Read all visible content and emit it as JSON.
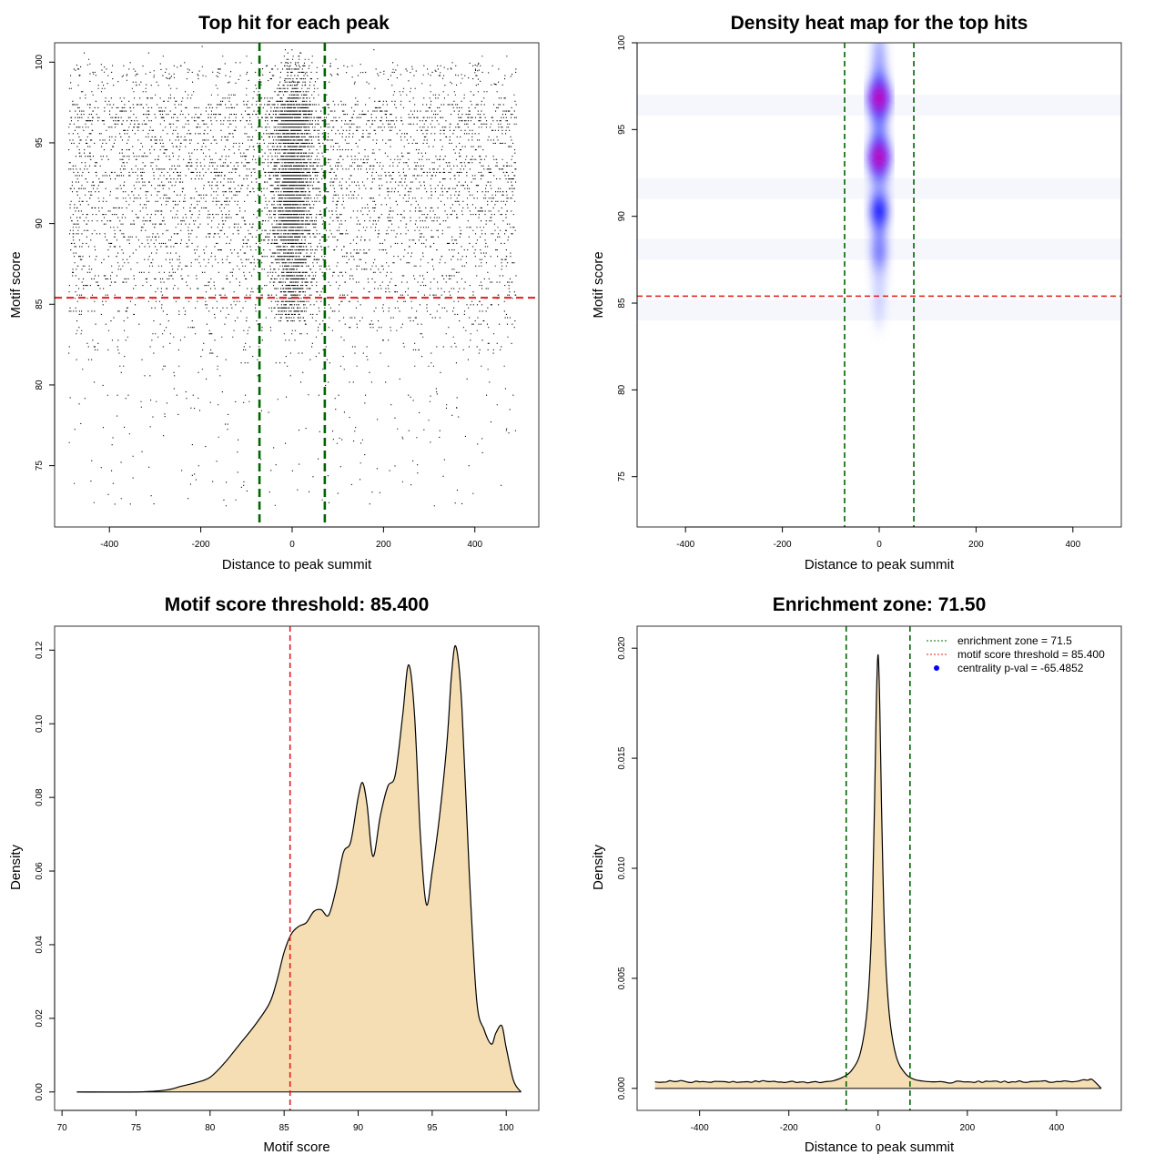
{
  "chart_data": [
    {
      "type": "scatter",
      "title": "Top hit for each peak",
      "xlabel": "Distance to peak summit",
      "ylabel": "Motif score",
      "xlim": [
        -500,
        500
      ],
      "ylim": [
        72,
        100
      ],
      "xticks": [
        -400,
        -200,
        0,
        200,
        400
      ],
      "yticks": [
        75,
        80,
        85,
        90,
        95,
        100
      ],
      "threshold_y": 85.4,
      "enrichment_zone": [
        -71.5,
        71.5
      ],
      "colors": {
        "points": "#000000",
        "threshold": "#e31a1c",
        "zone": "#006400"
      },
      "description": "Dense scatter of motif hits; hits concentrate near the summit (|x| < 70) and above the threshold; broad background across x at scores 80-97"
    },
    {
      "type": "heatmap",
      "title": "Density heat map for the top hits",
      "xlabel": "Distance to peak summit",
      "ylabel": "Motif score",
      "xlim": [
        -500,
        500
      ],
      "ylim": [
        72,
        100
      ],
      "xticks": [
        -400,
        -200,
        0,
        200,
        400
      ],
      "yticks": [
        75,
        80,
        85,
        90,
        95,
        100
      ],
      "threshold_y": 85.4,
      "enrichment_zone": [
        -71.5,
        71.5
      ],
      "hotspots": [
        {
          "x": 0,
          "y": 96.8,
          "level": "high"
        },
        {
          "x": 0,
          "y": 93.4,
          "level": "high"
        },
        {
          "x": 0,
          "y": 90.3,
          "level": "medium"
        },
        {
          "x": 0,
          "y": 88.0,
          "level": "low"
        }
      ],
      "colors": {
        "low": "#ffffff",
        "mid": "#0000ff",
        "high": "#ff0000",
        "threshold": "#e31a1c",
        "zone": "#006400"
      }
    },
    {
      "type": "area",
      "title": "Motif score threshold: 85.400",
      "xlabel": "Motif score",
      "ylabel": "Density",
      "xlim": [
        70,
        101.5
      ],
      "ylim": [
        0,
        0.125
      ],
      "xticks": [
        70,
        75,
        80,
        85,
        90,
        95,
        100
      ],
      "yticks": [
        0.0,
        0.02,
        0.04,
        0.06,
        0.08,
        0.1,
        0.12
      ],
      "ytick_labels": [
        "0.00",
        "0.02",
        "0.04",
        "0.06",
        "0.08",
        "0.10",
        "0.12"
      ],
      "threshold_x": 85.4,
      "x": [
        71,
        75,
        77,
        78,
        79,
        80,
        81,
        82,
        83,
        84,
        84.5,
        85,
        85.5,
        86,
        86.5,
        87,
        87.5,
        88,
        88.5,
        89,
        89.5,
        90,
        90.3,
        90.6,
        91,
        91.5,
        92,
        92.5,
        93,
        93.4,
        93.8,
        94.2,
        94.6,
        95,
        95.5,
        96,
        96.3,
        96.6,
        97,
        97.5,
        98,
        98.5,
        99,
        99.3,
        99.7,
        100,
        100.5,
        101
      ],
      "y": [
        0,
        0,
        0.0005,
        0.0015,
        0.0025,
        0.004,
        0.008,
        0.013,
        0.018,
        0.024,
        0.03,
        0.038,
        0.043,
        0.045,
        0.046,
        0.049,
        0.0495,
        0.048,
        0.055,
        0.065,
        0.068,
        0.08,
        0.084,
        0.078,
        0.064,
        0.075,
        0.083,
        0.086,
        0.102,
        0.116,
        0.103,
        0.07,
        0.051,
        0.06,
        0.075,
        0.095,
        0.113,
        0.121,
        0.105,
        0.06,
        0.025,
        0.017,
        0.013,
        0.016,
        0.018,
        0.012,
        0.003,
        0.0
      ],
      "colors": {
        "fill": "#f5deb3",
        "line": "#000000",
        "threshold": "#e31a1c"
      }
    },
    {
      "type": "area",
      "title": "Enrichment zone: 71.50",
      "xlabel": "Distance to peak summit",
      "ylabel": "Density",
      "xlim": [
        -500,
        500
      ],
      "ylim": [
        0,
        0.0205
      ],
      "xticks": [
        -400,
        -200,
        0,
        200,
        400
      ],
      "yticks": [
        0.0,
        0.005,
        0.01,
        0.015,
        0.02
      ],
      "ytick_labels": [
        "0.000",
        "0.005",
        "0.010",
        "0.015",
        "0.020"
      ],
      "enrichment_zone": [
        -71.5,
        71.5
      ],
      "x": [
        -500,
        -450,
        -400,
        -350,
        -300,
        -250,
        -200,
        -150,
        -120,
        -100,
        -80,
        -60,
        -40,
        -25,
        -15,
        -8,
        -4,
        0,
        4,
        8,
        15,
        25,
        40,
        60,
        80,
        100,
        120,
        150,
        200,
        250,
        300,
        350,
        400,
        450,
        480,
        500
      ],
      "y": [
        0.0003,
        0.00032,
        0.0003,
        0.00031,
        0.0003,
        0.00032,
        0.0003,
        0.00028,
        0.0003,
        0.00035,
        0.0005,
        0.0008,
        0.0016,
        0.0035,
        0.007,
        0.013,
        0.0175,
        0.0197,
        0.0172,
        0.0125,
        0.0068,
        0.0034,
        0.0015,
        0.0007,
        0.00042,
        0.00033,
        0.0003,
        0.00028,
        0.0003,
        0.00031,
        0.0003,
        0.00032,
        0.00031,
        0.00034,
        0.0004,
        0.0
      ],
      "colors": {
        "fill": "#f5deb3",
        "line": "#000000",
        "zone": "#006400",
        "threshold": "#e31a1c",
        "pval": "#0000ff"
      },
      "legend": {
        "position": "top-right",
        "entries": [
          {
            "label": "enrichment zone = 71.5",
            "style": "green-dotted"
          },
          {
            "label": "motif score threshold = 85.400",
            "style": "red-dotted"
          },
          {
            "label": "centrality p-val = -65.4852",
            "style": "blue-point"
          }
        ]
      }
    }
  ]
}
